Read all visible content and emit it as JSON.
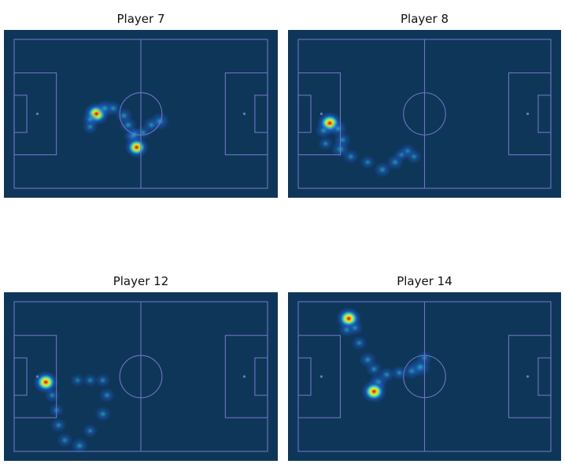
{
  "colors": {
    "pitch_background": "#0e3659",
    "pitch_lines": "#6f74c4",
    "heat_low": "#1e5fd0",
    "heat_mid": "#33d6d0",
    "heat_high_1": "#e8f02a",
    "heat_high_2": "#f08a14",
    "heat_peak": "#8a1206"
  },
  "chart_data": [
    {
      "type": "heatmap",
      "title": "Player 7",
      "pitch": {
        "length": 120,
        "width": 80
      },
      "grid": false,
      "hotspots": [
        {
          "x": 39,
          "y": 40,
          "intensity": 1.0
        },
        {
          "x": 43,
          "y": 37,
          "intensity": 0.55
        },
        {
          "x": 47,
          "y": 37,
          "intensity": 0.4
        },
        {
          "x": 52,
          "y": 41,
          "intensity": 0.45
        },
        {
          "x": 54,
          "y": 46,
          "intensity": 0.45
        },
        {
          "x": 56,
          "y": 52,
          "intensity": 0.5
        },
        {
          "x": 58,
          "y": 58,
          "intensity": 0.9
        },
        {
          "x": 57,
          "y": 51,
          "intensity": 0.4
        },
        {
          "x": 61,
          "y": 50,
          "intensity": 0.35
        },
        {
          "x": 65,
          "y": 46,
          "intensity": 0.45
        },
        {
          "x": 69,
          "y": 44,
          "intensity": 0.6
        },
        {
          "x": 36,
          "y": 43,
          "intensity": 0.4
        },
        {
          "x": 36,
          "y": 47,
          "intensity": 0.35
        }
      ]
    },
    {
      "type": "heatmap",
      "title": "Player 8",
      "pitch": {
        "length": 120,
        "width": 80
      },
      "grid": false,
      "hotspots": [
        {
          "x": 15,
          "y": 45,
          "intensity": 1.0
        },
        {
          "x": 12,
          "y": 49,
          "intensity": 0.45
        },
        {
          "x": 19,
          "y": 48,
          "intensity": 0.5
        },
        {
          "x": 21,
          "y": 54,
          "intensity": 0.45
        },
        {
          "x": 20,
          "y": 59,
          "intensity": 0.55
        },
        {
          "x": 25,
          "y": 63,
          "intensity": 0.35
        },
        {
          "x": 33,
          "y": 66,
          "intensity": 0.3
        },
        {
          "x": 40,
          "y": 70,
          "intensity": 0.45
        },
        {
          "x": 46,
          "y": 66,
          "intensity": 0.45
        },
        {
          "x": 52,
          "y": 60,
          "intensity": 0.35
        },
        {
          "x": 55,
          "y": 63,
          "intensity": 0.35
        },
        {
          "x": 49,
          "y": 62,
          "intensity": 0.3
        },
        {
          "x": 13,
          "y": 56,
          "intensity": 0.3
        }
      ]
    },
    {
      "type": "heatmap",
      "title": "Player 12",
      "pitch": {
        "length": 120,
        "width": 80
      },
      "grid": false,
      "hotspots": [
        {
          "x": 15,
          "y": 43,
          "intensity": 1.0
        },
        {
          "x": 18,
          "y": 50,
          "intensity": 0.35
        },
        {
          "x": 20,
          "y": 58,
          "intensity": 0.3
        },
        {
          "x": 21,
          "y": 66,
          "intensity": 0.35
        },
        {
          "x": 24,
          "y": 74,
          "intensity": 0.35
        },
        {
          "x": 31,
          "y": 77,
          "intensity": 0.45
        },
        {
          "x": 36,
          "y": 69,
          "intensity": 0.3
        },
        {
          "x": 42,
          "y": 60,
          "intensity": 0.4
        },
        {
          "x": 44,
          "y": 50,
          "intensity": 0.35
        },
        {
          "x": 42,
          "y": 42,
          "intensity": 0.3
        },
        {
          "x": 36,
          "y": 42,
          "intensity": 0.3
        },
        {
          "x": 30,
          "y": 42,
          "intensity": 0.25
        }
      ]
    },
    {
      "type": "heatmap",
      "title": "Player 14",
      "pitch": {
        "length": 120,
        "width": 80
      },
      "grid": false,
      "hotspots": [
        {
          "x": 24,
          "y": 9,
          "intensity": 1.0
        },
        {
          "x": 23,
          "y": 15,
          "intensity": 0.4
        },
        {
          "x": 27,
          "y": 14,
          "intensity": 0.4
        },
        {
          "x": 29,
          "y": 22,
          "intensity": 0.35
        },
        {
          "x": 33,
          "y": 31,
          "intensity": 0.45
        },
        {
          "x": 36,
          "y": 36,
          "intensity": 0.4
        },
        {
          "x": 38,
          "y": 43,
          "intensity": 0.6
        },
        {
          "x": 36,
          "y": 48,
          "intensity": 1.0
        },
        {
          "x": 42,
          "y": 39,
          "intensity": 0.4
        },
        {
          "x": 48,
          "y": 38,
          "intensity": 0.4
        },
        {
          "x": 54,
          "y": 37,
          "intensity": 0.5
        },
        {
          "x": 58,
          "y": 35,
          "intensity": 0.7
        },
        {
          "x": 60,
          "y": 30,
          "intensity": 0.35
        }
      ]
    }
  ]
}
